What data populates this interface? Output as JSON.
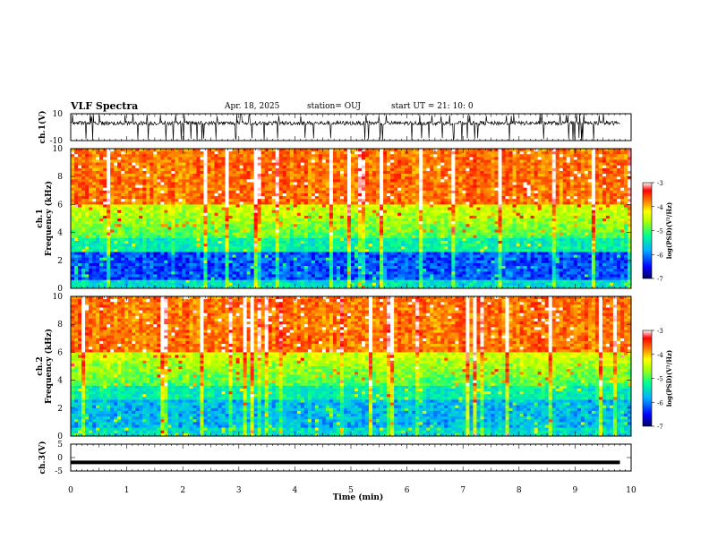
{
  "header": {
    "title": "VLF Spectra",
    "date": "Apr. 18, 2025",
    "station": "station= OUJ",
    "start": "start  UT  =   21: 10: 0"
  },
  "chart_data": [
    {
      "type": "line",
      "ylabel": "ch.1(V)",
      "ylim": [
        -10,
        10
      ],
      "yticks": [
        "10",
        "-10"
      ],
      "xlim": [
        0,
        10
      ],
      "description_series": [
        {
          "values_summary": "noisy waveform fluctuating around ~3 V with spikes to about -10 V and 10 V"
        }
      ]
    },
    {
      "type": "heatmap",
      "ylabel_line1": "ch.1",
      "ylabel_line2": "Frequency  (kHz)",
      "ylim": [
        0,
        10
      ],
      "yticks": [
        "0",
        "2",
        "4",
        "6",
        "8",
        "10"
      ],
      "xlim": [
        0,
        10
      ],
      "colorbar": {
        "label": "log(PSD)(V²/Hz)",
        "ticks": [
          "-3",
          "-4",
          "-5",
          "-6",
          "-7"
        ],
        "range": [
          -7,
          -3
        ]
      }
    },
    {
      "type": "heatmap",
      "ylabel_line1": "ch.2",
      "ylabel_line2": "Frequency  (kHz)",
      "ylim": [
        0,
        10
      ],
      "yticks": [
        "0",
        "2",
        "4",
        "6",
        "8",
        "10"
      ],
      "xlim": [
        0,
        10
      ],
      "colorbar": {
        "label": "log(PSD)(V²/Hz)",
        "ticks": [
          "-3",
          "-4",
          "-5",
          "-6",
          "-7"
        ],
        "range": [
          -7,
          -3
        ]
      }
    },
    {
      "type": "line",
      "ylabel": "ch.3(V)",
      "ylim": [
        -5,
        5
      ],
      "yticks": [
        "5",
        "0",
        "-5"
      ],
      "xlim": [
        0,
        10
      ],
      "series": [
        {
          "values": [
            -1.8,
            -1.8
          ]
        }
      ]
    }
  ],
  "xaxis": {
    "label": "Time  (min)",
    "ticks": [
      "0",
      "1",
      "2",
      "3",
      "4",
      "5",
      "6",
      "7",
      "8",
      "9",
      "10"
    ]
  },
  "colors": {
    "colormap": [
      "#000080",
      "#0000ff",
      "#00c8ff",
      "#00ff80",
      "#c8ff00",
      "#ffff00",
      "#ff8000",
      "#ff2000",
      "#ffffff"
    ]
  }
}
